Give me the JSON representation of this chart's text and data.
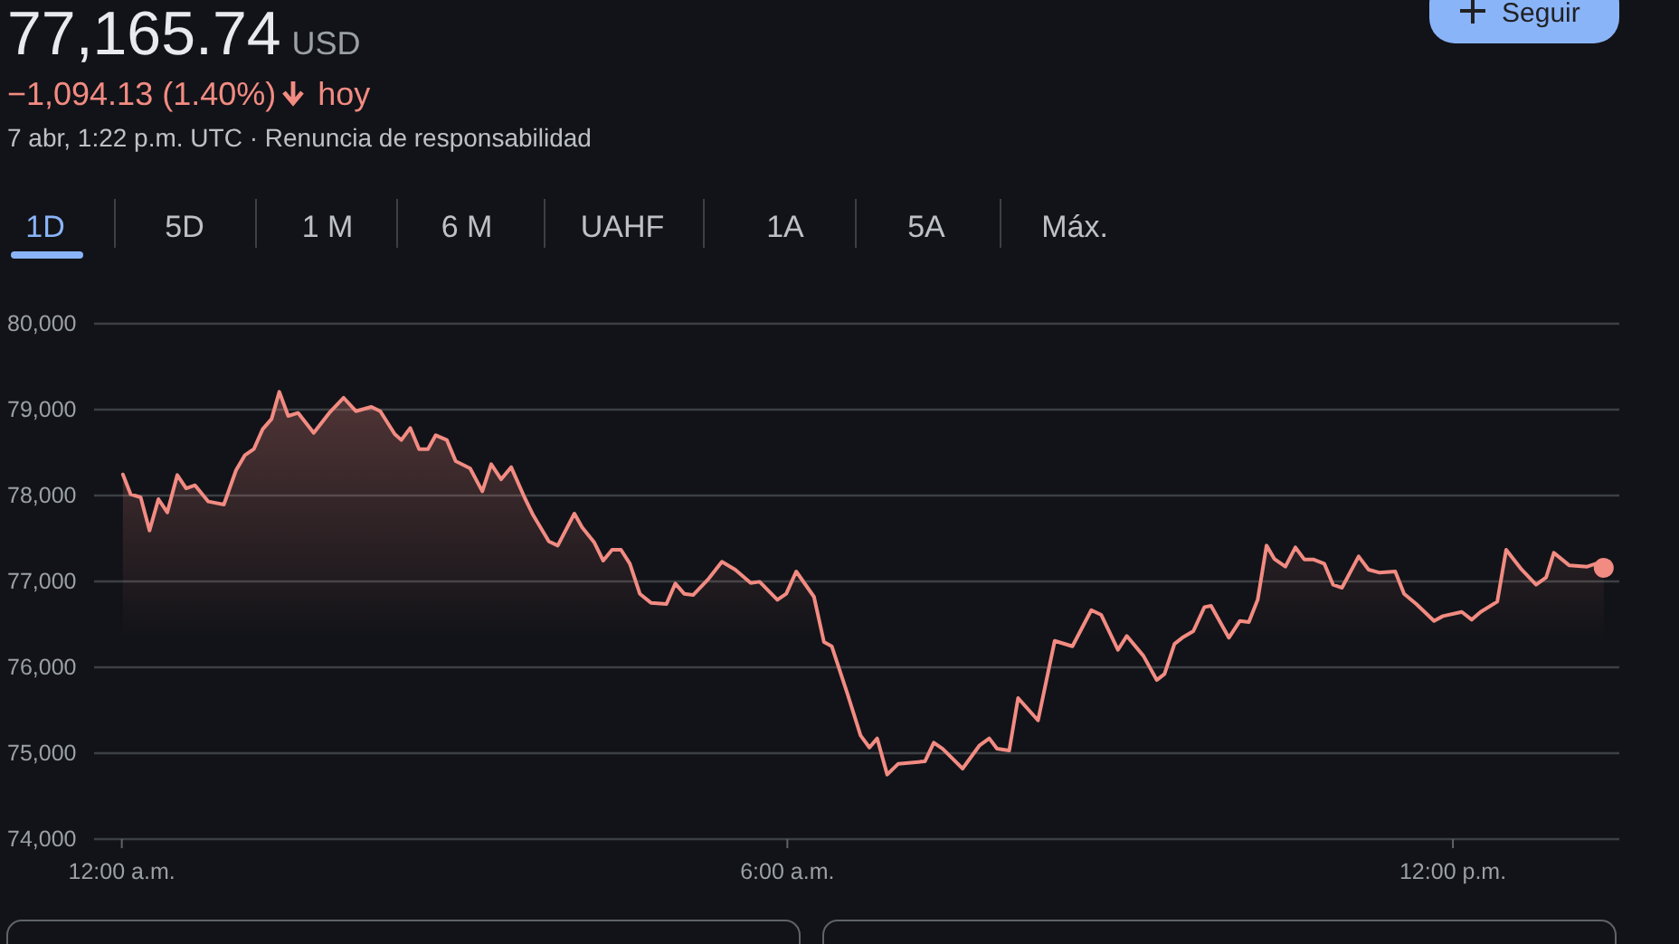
{
  "chart_data": {
    "type": "area",
    "title": "77,165.74 USD",
    "subtitle": "−1,094.13 (1.40%) hoy",
    "annotations": [
      "7 abr, 1:22 p.m. UTC · Renuncia de responsabilidad",
      "1D",
      "5D",
      "1 M",
      "6 M",
      "UAHF",
      "1A",
      "5A",
      "Máx.",
      "Seguir"
    ],
    "xlim": [
      -0.25,
      13.5
    ],
    "ylim": [
      74000,
      80000
    ],
    "xticks": [
      {
        "value": 0,
        "label": "12:00 a.m."
      },
      {
        "value": 6,
        "label": "6:00 a.m."
      },
      {
        "value": 12,
        "label": "12:00 p.m."
      }
    ],
    "yticks": [
      {
        "value": 74000,
        "label": "74,000"
      },
      {
        "value": 75000,
        "label": "75,000"
      },
      {
        "value": 76000,
        "label": "76,000"
      },
      {
        "value": 77000,
        "label": "77,000"
      },
      {
        "value": 78000,
        "label": "78,000"
      },
      {
        "value": 79000,
        "label": "79,000"
      },
      {
        "value": 80000,
        "label": "80,000"
      }
    ],
    "grid": "y",
    "series": [
      {
        "color": "#f28b82",
        "x": [
          0.01,
          0.08,
          0.17,
          0.25,
          0.33,
          0.41,
          0.5,
          0.58,
          0.66,
          0.78,
          0.92,
          1.03,
          1.11,
          1.19,
          1.27,
          1.35,
          1.42,
          1.5,
          1.59,
          1.73,
          1.87,
          2.0,
          2.11,
          2.25,
          2.33,
          2.46,
          2.52,
          2.6,
          2.68,
          2.76,
          2.83,
          2.93,
          3.01,
          3.14,
          3.25,
          3.33,
          3.42,
          3.51,
          3.63,
          3.71,
          3.85,
          3.93,
          4.08,
          4.15,
          4.26,
          4.34,
          4.42,
          4.5,
          4.58,
          4.67,
          4.77,
          4.91,
          4.99,
          5.07,
          5.15,
          5.29,
          5.41,
          5.53,
          5.67,
          5.75,
          5.91,
          5.99,
          6.08,
          6.24,
          6.33,
          6.4,
          6.54,
          6.66,
          6.74,
          6.81,
          6.9,
          7.0,
          7.24,
          7.32,
          7.4,
          7.58,
          7.73,
          7.82,
          7.89,
          8.0,
          8.08,
          8.26,
          8.41,
          8.57,
          8.74,
          8.83,
          8.98,
          9.06,
          9.21,
          9.33,
          9.4,
          9.49,
          9.56,
          9.66,
          9.76,
          9.82,
          9.98,
          10.08,
          10.16,
          10.24,
          10.32,
          10.39,
          10.49,
          10.58,
          10.66,
          10.74,
          10.84,
          10.92,
          11.0,
          11.15,
          11.24,
          11.34,
          11.48,
          11.56,
          11.67,
          11.83,
          11.91,
          12.08,
          12.17,
          12.25,
          12.4,
          12.48,
          12.62,
          12.75,
          12.84,
          12.91,
          13.05,
          13.21,
          13.29,
          13.36
        ],
        "values": [
          78245,
          78014,
          77979,
          77593,
          77958,
          77803,
          78238,
          78084,
          78119,
          77930,
          77895,
          78295,
          78470,
          78540,
          78772,
          78891,
          79207,
          78926,
          78961,
          78730,
          78961,
          79137,
          78982,
          79031,
          78982,
          78716,
          78646,
          78786,
          78540,
          78540,
          78702,
          78646,
          78400,
          78316,
          78049,
          78365,
          78189,
          78330,
          77979,
          77768,
          77466,
          77417,
          77789,
          77628,
          77452,
          77242,
          77368,
          77368,
          77207,
          76856,
          76751,
          76737,
          76975,
          76856,
          76842,
          77031,
          77228,
          77137,
          76982,
          76996,
          76786,
          76856,
          77116,
          76821,
          76294,
          76245,
          75698,
          75207,
          75066,
          75172,
          74751,
          74877,
          74905,
          75123,
          75052,
          74821,
          75087,
          75172,
          75052,
          75031,
          75642,
          75382,
          76308,
          76245,
          76666,
          76610,
          76203,
          76365,
          76133,
          75852,
          75923,
          76273,
          76344,
          76421,
          76701,
          76716,
          76344,
          76540,
          76526,
          76786,
          77417,
          77263,
          77172,
          77396,
          77256,
          77256,
          77207,
          76961,
          76926,
          77291,
          77137,
          77102,
          77116,
          76856,
          76737,
          76540,
          76596,
          76645,
          76554,
          76645,
          76765,
          77368,
          77137,
          76961,
          77045,
          77333,
          77186,
          77172,
          77207,
          77158
        ]
      },
      {
        "type": "scatter",
        "color": "#f28b82",
        "marker": "circle",
        "x": [
          13.36
        ],
        "values": [
          77158
        ]
      }
    ]
  }
}
